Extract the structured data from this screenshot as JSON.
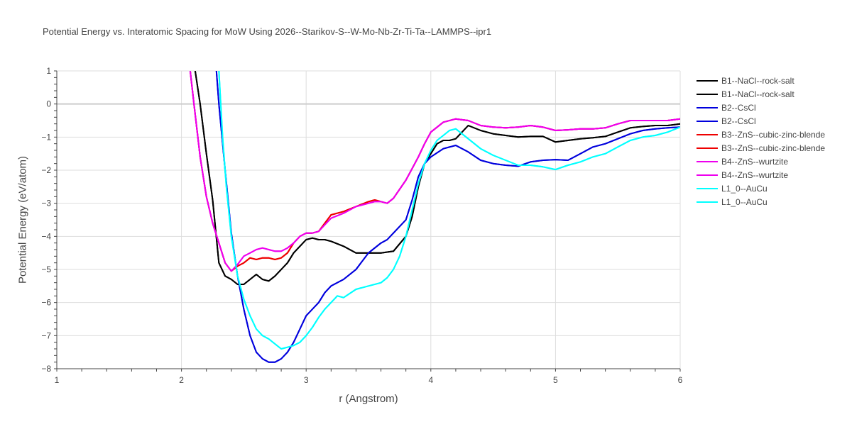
{
  "chart_data": {
    "type": "line",
    "title": "Potential Energy vs. Interatomic Spacing for MoW Using 2026--Starikov-S--W-Mo-Nb-Zr-Ti-Ta--LAMMPS--ipr1",
    "xlabel": "r (Angstrom)",
    "ylabel": "Potential Energy (eV/atom)",
    "xlim": [
      1,
      6
    ],
    "ylim": [
      -8,
      1
    ],
    "xticks": [
      "1",
      "2",
      "3",
      "4",
      "5",
      "6"
    ],
    "yticks": [
      "1",
      "0",
      "−1",
      "−2",
      "−3",
      "−4",
      "−5",
      "−6",
      "−7",
      "−8"
    ],
    "grid": true,
    "legend_position": "right",
    "series": [
      {
        "name": "B1--NaCl--rock-salt",
        "color": "#000000",
        "x": [
          2.11,
          2.15,
          2.2,
          2.25,
          2.3,
          2.35,
          2.4,
          2.45,
          2.5,
          2.55,
          2.6,
          2.65,
          2.7,
          2.75,
          2.8,
          2.85,
          2.9,
          2.95,
          3.0,
          3.05,
          3.1,
          3.15,
          3.2,
          3.3,
          3.4,
          3.5,
          3.6,
          3.7,
          3.8,
          3.85,
          3.9,
          3.95,
          4.0,
          4.05,
          4.1,
          4.15,
          4.2,
          4.25,
          4.3,
          4.4,
          4.5,
          4.6,
          4.7,
          4.8,
          4.85,
          4.9,
          5.0,
          5.1,
          5.2,
          5.3,
          5.4,
          5.5,
          5.6,
          5.7,
          5.8,
          5.9,
          6.0
        ],
        "y": [
          1.0,
          0.0,
          -1.5,
          -2.9,
          -4.8,
          -5.2,
          -5.3,
          -5.45,
          -5.45,
          -5.3,
          -5.15,
          -5.3,
          -5.35,
          -5.2,
          -5.0,
          -4.8,
          -4.5,
          -4.3,
          -4.1,
          -4.05,
          -4.1,
          -4.1,
          -4.15,
          -4.3,
          -4.5,
          -4.5,
          -4.5,
          -4.45,
          -4.0,
          -3.4,
          -2.5,
          -1.8,
          -1.5,
          -1.2,
          -1.1,
          -1.1,
          -1.05,
          -0.85,
          -0.65,
          -0.8,
          -0.9,
          -0.95,
          -1.0,
          -0.98,
          -0.98,
          -0.98,
          -1.15,
          -1.1,
          -1.05,
          -1.02,
          -0.98,
          -0.85,
          -0.72,
          -0.68,
          -0.65,
          -0.65,
          -0.6
        ]
      },
      {
        "name": "B1--NaCl--rock-salt",
        "color": "#000000",
        "x": [
          2.11,
          2.15,
          2.2,
          2.25,
          2.3,
          2.35,
          2.4,
          2.45,
          2.5,
          2.55,
          2.6,
          2.65,
          2.7,
          2.75,
          2.8,
          2.85,
          2.9,
          2.95,
          3.0,
          3.05,
          3.1,
          3.15,
          3.2,
          3.3,
          3.4,
          3.5,
          3.6,
          3.7,
          3.8,
          3.85,
          3.9,
          3.95,
          4.0,
          4.05,
          4.1,
          4.15,
          4.2,
          4.25,
          4.3,
          4.4,
          4.5,
          4.6,
          4.7,
          4.8,
          4.85,
          4.9,
          5.0,
          5.1,
          5.2,
          5.3,
          5.4,
          5.5,
          5.6,
          5.7,
          5.8,
          5.9,
          6.0
        ],
        "y": [
          1.0,
          0.0,
          -1.5,
          -2.9,
          -4.8,
          -5.2,
          -5.3,
          -5.45,
          -5.45,
          -5.3,
          -5.15,
          -5.3,
          -5.35,
          -5.2,
          -5.0,
          -4.8,
          -4.5,
          -4.3,
          -4.1,
          -4.05,
          -4.1,
          -4.1,
          -4.15,
          -4.3,
          -4.5,
          -4.5,
          -4.5,
          -4.45,
          -4.0,
          -3.4,
          -2.5,
          -1.8,
          -1.5,
          -1.2,
          -1.1,
          -1.1,
          -1.05,
          -0.85,
          -0.65,
          -0.8,
          -0.9,
          -0.95,
          -1.0,
          -0.98,
          -0.98,
          -0.98,
          -1.15,
          -1.1,
          -1.05,
          -1.02,
          -0.98,
          -0.85,
          -0.72,
          -0.68,
          -0.65,
          -0.65,
          -0.6
        ]
      },
      {
        "name": "B2--CsCl",
        "color": "#0000dd",
        "x": [
          2.28,
          2.3,
          2.35,
          2.4,
          2.45,
          2.5,
          2.55,
          2.6,
          2.65,
          2.7,
          2.75,
          2.8,
          2.85,
          2.9,
          2.95,
          3.0,
          3.05,
          3.1,
          3.15,
          3.2,
          3.3,
          3.4,
          3.5,
          3.6,
          3.65,
          3.7,
          3.8,
          3.85,
          3.9,
          3.95,
          4.0,
          4.1,
          4.2,
          4.3,
          4.4,
          4.5,
          4.6,
          4.7,
          4.8,
          4.9,
          5.0,
          5.1,
          5.2,
          5.3,
          5.4,
          5.5,
          5.6,
          5.7,
          5.8,
          5.9,
          6.0
        ],
        "y": [
          1.0,
          0.0,
          -2.0,
          -3.9,
          -5.2,
          -6.2,
          -7.0,
          -7.5,
          -7.7,
          -7.8,
          -7.8,
          -7.7,
          -7.5,
          -7.2,
          -6.8,
          -6.4,
          -6.2,
          -6.0,
          -5.7,
          -5.5,
          -5.3,
          -5.0,
          -4.5,
          -4.2,
          -4.1,
          -3.9,
          -3.5,
          -2.9,
          -2.2,
          -1.8,
          -1.6,
          -1.35,
          -1.25,
          -1.45,
          -1.7,
          -1.8,
          -1.85,
          -1.88,
          -1.75,
          -1.7,
          -1.68,
          -1.7,
          -1.5,
          -1.3,
          -1.2,
          -1.05,
          -0.9,
          -0.8,
          -0.75,
          -0.72,
          -0.7
        ]
      },
      {
        "name": "B2--CsCl",
        "color": "#0000dd",
        "x": [
          2.28,
          2.3,
          2.35,
          2.4,
          2.45,
          2.5,
          2.55,
          2.6,
          2.65,
          2.7,
          2.75,
          2.8,
          2.85,
          2.9,
          2.95,
          3.0,
          3.05,
          3.1,
          3.15,
          3.2,
          3.3,
          3.4,
          3.5,
          3.6,
          3.65,
          3.7,
          3.8,
          3.85,
          3.9,
          3.95,
          4.0,
          4.1,
          4.2,
          4.3,
          4.4,
          4.5,
          4.6,
          4.7,
          4.8,
          4.9,
          5.0,
          5.1,
          5.2,
          5.3,
          5.4,
          5.5,
          5.6,
          5.7,
          5.8,
          5.9,
          6.0
        ],
        "y": [
          1.0,
          0.0,
          -2.0,
          -3.9,
          -5.2,
          -6.2,
          -7.0,
          -7.5,
          -7.7,
          -7.8,
          -7.8,
          -7.7,
          -7.5,
          -7.2,
          -6.8,
          -6.4,
          -6.2,
          -6.0,
          -5.7,
          -5.5,
          -5.3,
          -5.0,
          -4.5,
          -4.2,
          -4.1,
          -3.9,
          -3.5,
          -2.9,
          -2.2,
          -1.8,
          -1.6,
          -1.35,
          -1.25,
          -1.45,
          -1.7,
          -1.8,
          -1.85,
          -1.88,
          -1.75,
          -1.7,
          -1.68,
          -1.7,
          -1.5,
          -1.3,
          -1.2,
          -1.05,
          -0.9,
          -0.8,
          -0.75,
          -0.72,
          -0.7
        ]
      },
      {
        "name": "B3--ZnS--cubic-zinc-blende",
        "color": "#ee0000",
        "x": [
          2.07,
          2.1,
          2.15,
          2.2,
          2.25,
          2.3,
          2.35,
          2.4,
          2.45,
          2.5,
          2.55,
          2.6,
          2.65,
          2.7,
          2.75,
          2.8,
          2.85,
          2.9,
          2.95,
          3.0,
          3.05,
          3.1,
          3.15,
          3.2,
          3.3,
          3.4,
          3.5,
          3.55,
          3.6,
          3.65,
          3.7,
          3.8,
          3.85,
          3.9,
          3.95,
          4.0,
          4.1,
          4.2,
          4.3,
          4.4,
          4.5,
          4.6,
          4.7,
          4.8,
          4.9,
          5.0,
          5.1,
          5.2,
          5.3,
          5.4,
          5.5,
          5.6,
          5.7,
          5.8,
          5.9,
          6.0
        ],
        "y": [
          1.0,
          0.0,
          -1.6,
          -2.8,
          -3.6,
          -4.2,
          -4.8,
          -5.05,
          -4.9,
          -4.8,
          -4.65,
          -4.7,
          -4.65,
          -4.65,
          -4.7,
          -4.65,
          -4.5,
          -4.2,
          -4.0,
          -3.9,
          -3.9,
          -3.85,
          -3.6,
          -3.35,
          -3.25,
          -3.1,
          -2.95,
          -2.9,
          -2.95,
          -3.0,
          -2.85,
          -2.3,
          -1.95,
          -1.6,
          -1.2,
          -0.85,
          -0.55,
          -0.45,
          -0.5,
          -0.65,
          -0.7,
          -0.72,
          -0.7,
          -0.65,
          -0.7,
          -0.8,
          -0.78,
          -0.75,
          -0.75,
          -0.72,
          -0.6,
          -0.5,
          -0.5,
          -0.5,
          -0.5,
          -0.45
        ]
      },
      {
        "name": "B3--ZnS--cubic-zinc-blende",
        "color": "#ee0000",
        "x": [
          2.07,
          2.1,
          2.15,
          2.2,
          2.25,
          2.3,
          2.35,
          2.4,
          2.45,
          2.5,
          2.55,
          2.6,
          2.65,
          2.7,
          2.75,
          2.8,
          2.85,
          2.9,
          2.95,
          3.0,
          3.05,
          3.1,
          3.15,
          3.2,
          3.3,
          3.4,
          3.5,
          3.55,
          3.6,
          3.65,
          3.7,
          3.8,
          3.85,
          3.9,
          3.95,
          4.0,
          4.1,
          4.2,
          4.3,
          4.4,
          4.5,
          4.6,
          4.7,
          4.8,
          4.9,
          5.0,
          5.1,
          5.2,
          5.3,
          5.4,
          5.5,
          5.6,
          5.7,
          5.8,
          5.9,
          6.0
        ],
        "y": [
          1.0,
          0.0,
          -1.6,
          -2.8,
          -3.6,
          -4.2,
          -4.8,
          -5.05,
          -4.9,
          -4.8,
          -4.65,
          -4.7,
          -4.65,
          -4.65,
          -4.7,
          -4.65,
          -4.5,
          -4.2,
          -4.0,
          -3.9,
          -3.9,
          -3.85,
          -3.6,
          -3.35,
          -3.25,
          -3.1,
          -2.95,
          -2.9,
          -2.95,
          -3.0,
          -2.85,
          -2.3,
          -1.95,
          -1.6,
          -1.2,
          -0.85,
          -0.55,
          -0.45,
          -0.5,
          -0.65,
          -0.7,
          -0.72,
          -0.7,
          -0.65,
          -0.7,
          -0.8,
          -0.78,
          -0.75,
          -0.75,
          -0.72,
          -0.6,
          -0.5,
          -0.5,
          -0.5,
          -0.5,
          -0.45
        ]
      },
      {
        "name": "B4--ZnS--wurtzite",
        "color": "#ee00ee",
        "x": [
          2.07,
          2.1,
          2.15,
          2.2,
          2.25,
          2.3,
          2.35,
          2.4,
          2.45,
          2.5,
          2.55,
          2.6,
          2.65,
          2.7,
          2.75,
          2.8,
          2.85,
          2.9,
          2.95,
          3.0,
          3.05,
          3.1,
          3.15,
          3.2,
          3.3,
          3.4,
          3.5,
          3.55,
          3.6,
          3.65,
          3.7,
          3.8,
          3.85,
          3.9,
          3.95,
          4.0,
          4.1,
          4.2,
          4.3,
          4.4,
          4.5,
          4.6,
          4.7,
          4.8,
          4.9,
          5.0,
          5.1,
          5.2,
          5.3,
          5.4,
          5.5,
          5.6,
          5.7,
          5.8,
          5.9,
          6.0
        ],
        "y": [
          1.0,
          0.0,
          -1.6,
          -2.8,
          -3.6,
          -4.2,
          -4.8,
          -5.05,
          -4.85,
          -4.6,
          -4.5,
          -4.4,
          -4.35,
          -4.4,
          -4.45,
          -4.45,
          -4.35,
          -4.2,
          -4.0,
          -3.9,
          -3.9,
          -3.85,
          -3.65,
          -3.45,
          -3.3,
          -3.1,
          -3.0,
          -2.95,
          -2.95,
          -3.0,
          -2.85,
          -2.3,
          -1.95,
          -1.6,
          -1.2,
          -0.85,
          -0.55,
          -0.45,
          -0.5,
          -0.65,
          -0.7,
          -0.72,
          -0.7,
          -0.65,
          -0.7,
          -0.8,
          -0.78,
          -0.75,
          -0.75,
          -0.72,
          -0.6,
          -0.5,
          -0.5,
          -0.5,
          -0.5,
          -0.45
        ]
      },
      {
        "name": "B4--ZnS--wurtzite",
        "color": "#ee00ee",
        "x": [
          2.07,
          2.1,
          2.15,
          2.2,
          2.25,
          2.3,
          2.35,
          2.4,
          2.45,
          2.5,
          2.55,
          2.6,
          2.65,
          2.7,
          2.75,
          2.8,
          2.85,
          2.9,
          2.95,
          3.0,
          3.05,
          3.1,
          3.15,
          3.2,
          3.3,
          3.4,
          3.5,
          3.55,
          3.6,
          3.65,
          3.7,
          3.8,
          3.85,
          3.9,
          3.95,
          4.0,
          4.1,
          4.2,
          4.3,
          4.4,
          4.5,
          4.6,
          4.7,
          4.8,
          4.9,
          5.0,
          5.1,
          5.2,
          5.3,
          5.4,
          5.5,
          5.6,
          5.7,
          5.8,
          5.9,
          6.0
        ],
        "y": [
          1.0,
          0.0,
          -1.6,
          -2.8,
          -3.6,
          -4.2,
          -4.8,
          -5.05,
          -4.85,
          -4.6,
          -4.5,
          -4.4,
          -4.35,
          -4.4,
          -4.45,
          -4.45,
          -4.35,
          -4.2,
          -4.0,
          -3.9,
          -3.9,
          -3.85,
          -3.65,
          -3.45,
          -3.3,
          -3.1,
          -3.0,
          -2.95,
          -2.95,
          -3.0,
          -2.85,
          -2.3,
          -1.95,
          -1.6,
          -1.2,
          -0.85,
          -0.55,
          -0.45,
          -0.5,
          -0.65,
          -0.7,
          -0.72,
          -0.7,
          -0.65,
          -0.7,
          -0.8,
          -0.78,
          -0.75,
          -0.75,
          -0.72,
          -0.6,
          -0.5,
          -0.5,
          -0.5,
          -0.5,
          -0.45
        ]
      },
      {
        "name": "L1_0--AuCu",
        "color": "#00ffff",
        "x": [
          2.3,
          2.33,
          2.36,
          2.4,
          2.45,
          2.5,
          2.55,
          2.6,
          2.65,
          2.7,
          2.75,
          2.8,
          2.85,
          2.9,
          2.95,
          3.0,
          3.05,
          3.1,
          3.15,
          3.2,
          3.25,
          3.3,
          3.4,
          3.5,
          3.6,
          3.65,
          3.7,
          3.75,
          3.8,
          3.85,
          3.9,
          3.95,
          4.0,
          4.05,
          4.1,
          4.15,
          4.2,
          4.3,
          4.4,
          4.5,
          4.6,
          4.7,
          4.8,
          4.9,
          5.0,
          5.1,
          5.2,
          5.3,
          5.4,
          5.5,
          5.6,
          5.7,
          5.8,
          5.9,
          6.0
        ],
        "y": [
          1.0,
          -1.0,
          -2.5,
          -4.0,
          -5.2,
          -5.9,
          -6.4,
          -6.8,
          -7.0,
          -7.1,
          -7.25,
          -7.4,
          -7.35,
          -7.3,
          -7.2,
          -7.0,
          -6.75,
          -6.45,
          -6.2,
          -6.0,
          -5.8,
          -5.85,
          -5.6,
          -5.5,
          -5.4,
          -5.25,
          -5.0,
          -4.6,
          -4.0,
          -3.2,
          -2.4,
          -1.8,
          -1.4,
          -1.1,
          -0.95,
          -0.8,
          -0.75,
          -1.05,
          -1.35,
          -1.55,
          -1.7,
          -1.85,
          -1.85,
          -1.9,
          -1.98,
          -1.85,
          -1.75,
          -1.6,
          -1.5,
          -1.3,
          -1.1,
          -1.0,
          -0.95,
          -0.85,
          -0.7
        ]
      },
      {
        "name": "L1_0--AuCu",
        "color": "#00ffff",
        "x": [
          2.3,
          2.33,
          2.36,
          2.4,
          2.45,
          2.5,
          2.55,
          2.6,
          2.65,
          2.7,
          2.75,
          2.8,
          2.85,
          2.9,
          2.95,
          3.0,
          3.05,
          3.1,
          3.15,
          3.2,
          3.25,
          3.3,
          3.4,
          3.5,
          3.6,
          3.65,
          3.7,
          3.75,
          3.8,
          3.85,
          3.9,
          3.95,
          4.0,
          4.05,
          4.1,
          4.15,
          4.2,
          4.3,
          4.4,
          4.5,
          4.6,
          4.7,
          4.8,
          4.9,
          5.0,
          5.1,
          5.2,
          5.3,
          5.4,
          5.5,
          5.6,
          5.7,
          5.8,
          5.9,
          6.0
        ],
        "y": [
          1.0,
          -1.0,
          -2.5,
          -4.0,
          -5.2,
          -5.9,
          -6.4,
          -6.8,
          -7.0,
          -7.1,
          -7.25,
          -7.4,
          -7.35,
          -7.3,
          -7.2,
          -7.0,
          -6.75,
          -6.45,
          -6.2,
          -6.0,
          -5.8,
          -5.85,
          -5.6,
          -5.5,
          -5.4,
          -5.25,
          -5.0,
          -4.6,
          -4.0,
          -3.2,
          -2.4,
          -1.8,
          -1.4,
          -1.1,
          -0.95,
          -0.8,
          -0.75,
          -1.05,
          -1.35,
          -1.55,
          -1.7,
          -1.85,
          -1.85,
          -1.9,
          -1.98,
          -1.85,
          -1.75,
          -1.6,
          -1.5,
          -1.3,
          -1.1,
          -1.0,
          -0.95,
          -0.85,
          -0.7
        ]
      }
    ]
  }
}
